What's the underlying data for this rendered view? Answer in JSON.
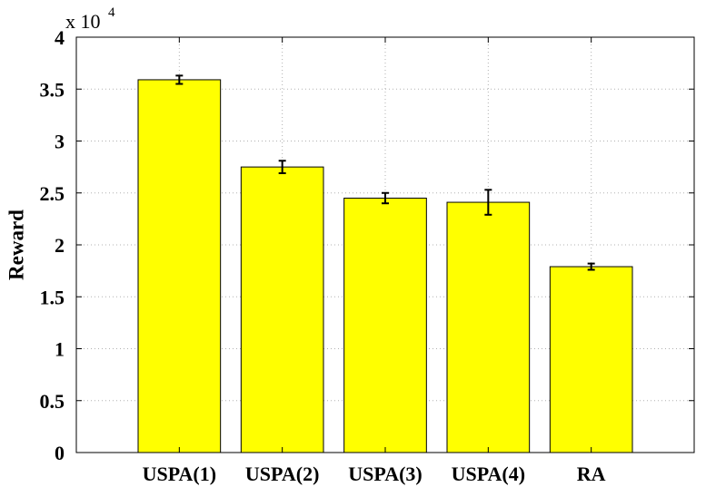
{
  "chart_data": {
    "type": "bar",
    "ylabel": "Reward",
    "xlabel": "",
    "title": "",
    "y_multiplier": {
      "base": "x 10",
      "exponent": "4"
    },
    "categories": [
      "USPA(1)",
      "USPA(2)",
      "USPA(3)",
      "USPA(4)",
      "RA"
    ],
    "values": [
      35900,
      27500,
      24500,
      24100,
      17900
    ],
    "error": [
      400,
      600,
      500,
      1200,
      300
    ],
    "ylim": [
      0,
      40000
    ],
    "yticks": [
      0,
      5000,
      10000,
      15000,
      20000,
      25000,
      30000,
      35000,
      40000
    ],
    "ytick_labels": [
      "0",
      "0.5",
      "1",
      "1.5",
      "2",
      "2.5",
      "3",
      "3.5",
      "4"
    ],
    "grid": true,
    "bar_color": "#ffff00",
    "bar_edge_color": "#000000"
  }
}
